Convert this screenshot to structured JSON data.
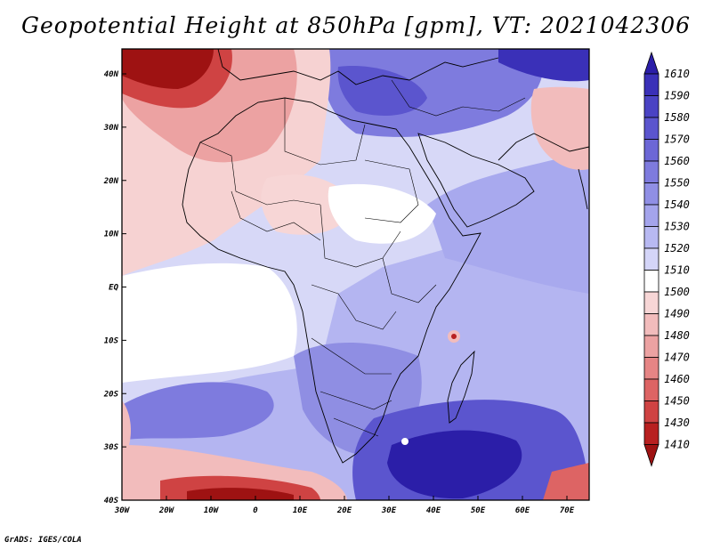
{
  "title": "Geopotential Height at 850hPa [gpm], VT: 2021042306",
  "credit": "GrADS: IGES/COLA",
  "map": {
    "lon_range": [
      -30,
      75
    ],
    "lat_range": [
      -40,
      45
    ],
    "lat_ticks": [
      "40N",
      "30N",
      "20N",
      "10N",
      "EQ",
      "10S",
      "20S",
      "30S",
      "40S"
    ],
    "lon_ticks": [
      "30W",
      "20W",
      "10W",
      "0",
      "10E",
      "20E",
      "30E",
      "40E",
      "50E",
      "60E",
      "70E"
    ]
  },
  "colorbar": {
    "levels": [
      "1610",
      "1590",
      "1580",
      "1570",
      "1560",
      "1550",
      "1540",
      "1530",
      "1520",
      "1510",
      "1500",
      "1490",
      "1480",
      "1470",
      "1460",
      "1450",
      "1430",
      "1410"
    ],
    "colors": [
      "#2b1ea8",
      "#3a30b8",
      "#4a43c4",
      "#5b55ce",
      "#6c67d6",
      "#7e7bde",
      "#908fe5",
      "#a4a4ec",
      "#b8b9f2",
      "#d4d5f8",
      "#ffffff",
      "#f7d6d6",
      "#f2bcbc",
      "#eca2a2",
      "#e68585",
      "#dd6464",
      "#cf4343",
      "#b82020",
      "#9e1212"
    ]
  }
}
